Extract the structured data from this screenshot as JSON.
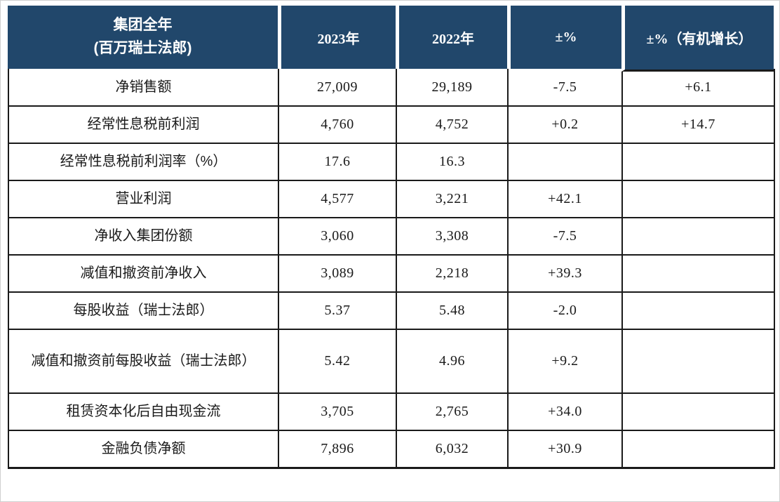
{
  "colors": {
    "header_bg": "#21476b",
    "header_text": "#ffffff",
    "grid_border": "#1a1a1a",
    "body_text": "#1a1a1a",
    "frame_border": "#d0d0d0",
    "page_bg": "#ffffff"
  },
  "table": {
    "header": {
      "group_title_line1": "集团全年",
      "group_title_line2": "(百万瑞士法郎)",
      "columns": {
        "y2023": "2023年",
        "y2022": "2022年",
        "change_pct": "±%",
        "organic_pct": "±%（有机增长）"
      }
    },
    "rows": [
      {
        "label": "净销售额",
        "y2023": "27,009",
        "y2022": "29,189",
        "change_pct": "-7.5",
        "organic_pct": "+6.1"
      },
      {
        "label": "经常性息税前利润",
        "y2023": "4,760",
        "y2022": "4,752",
        "change_pct": "+0.2",
        "organic_pct": "+14.7"
      },
      {
        "label": "经常性息税前利润率（%）",
        "y2023": "17.6",
        "y2022": "16.3",
        "change_pct": "",
        "organic_pct": ""
      },
      {
        "label": "营业利润",
        "y2023": "4,577",
        "y2022": "3,221",
        "change_pct": "+42.1",
        "organic_pct": ""
      },
      {
        "label": "净收入集团份额",
        "y2023": "3,060",
        "y2022": "3,308",
        "change_pct": "-7.5",
        "organic_pct": ""
      },
      {
        "label": "减值和撤资前净收入",
        "y2023": "3,089",
        "y2022": "2,218",
        "change_pct": "+39.3",
        "organic_pct": ""
      },
      {
        "label": "每股收益（瑞士法郎）",
        "y2023": "5.37",
        "y2022": "5.48",
        "change_pct": "-2.0",
        "organic_pct": ""
      },
      {
        "label": "减值和撤资前每股收益（瑞士法郎）",
        "y2023": "5.42",
        "y2022": "4.96",
        "change_pct": "+9.2",
        "organic_pct": "",
        "tall": true
      },
      {
        "label": "租赁资本化后自由现金流",
        "y2023": "3,705",
        "y2022": "2,765",
        "change_pct": "+34.0",
        "organic_pct": ""
      },
      {
        "label": "金融负债净额",
        "y2023": "7,896",
        "y2022": "6,032",
        "change_pct": "+30.9",
        "organic_pct": ""
      }
    ]
  }
}
